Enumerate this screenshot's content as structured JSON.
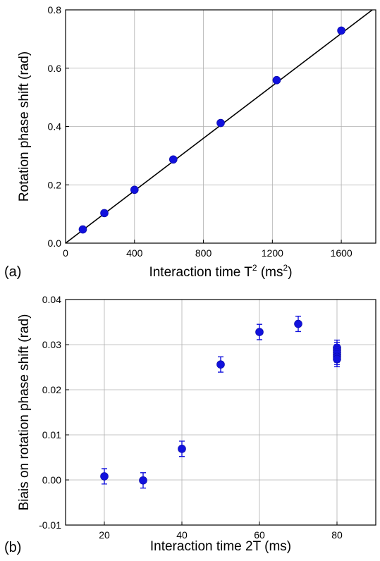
{
  "chart_data": [
    {
      "id": "a",
      "panel_label": "(a)",
      "type": "scatter",
      "title": "",
      "xlabel": "Interaction time T",
      "xlabel_sup": "2",
      "xlabel_tail": " (ms",
      "xlabel_tail_sup": "2",
      "xlabel_close": ")",
      "ylabel": "Rotation phase shift (rad)",
      "xlim": [
        0,
        1800
      ],
      "ylim": [
        0,
        0.8
      ],
      "xticks": [
        0,
        400,
        800,
        1200,
        1600
      ],
      "yticks": [
        0.0,
        0.2,
        0.4,
        0.6,
        0.8
      ],
      "xtick_labels": [
        "0",
        "400",
        "800",
        "1200",
        "1600"
      ],
      "ytick_labels": [
        "0.0",
        "0.2",
        "0.4",
        "0.6",
        "0.8"
      ],
      "grid": true,
      "marker_color": "#1111dd",
      "line_color": "#000000",
      "series": [
        {
          "x": [
            100,
            225,
            400,
            625,
            900,
            1225,
            1600
          ],
          "y": [
            0.047,
            0.103,
            0.183,
            0.287,
            0.412,
            0.559,
            0.729
          ]
        }
      ],
      "fit_line": {
        "x": [
          0,
          1780
        ],
        "y": [
          0,
          0.81
        ]
      }
    },
    {
      "id": "b",
      "panel_label": "(b)",
      "type": "scatter",
      "title": "",
      "xlabel": "Interaction time 2T (ms)",
      "ylabel": "Biais on rotation phase shift (rad)",
      "xlim": [
        10,
        90
      ],
      "ylim": [
        -0.01,
        0.04
      ],
      "xticks": [
        20,
        40,
        60,
        80
      ],
      "yticks": [
        -0.01,
        0.0,
        0.01,
        0.02,
        0.03,
        0.04
      ],
      "xtick_labels": [
        "20",
        "40",
        "60",
        "80"
      ],
      "ytick_labels": [
        "-0.01",
        "0.00",
        "0.01",
        "0.02",
        "0.03",
        "0.04"
      ],
      "grid": true,
      "marker_color": "#1111dd",
      "series": [
        {
          "x": [
            20,
            30,
            40,
            50,
            60,
            70,
            80,
            80,
            80,
            80,
            80,
            80
          ],
          "y": [
            0.0008,
            -0.0001,
            0.0069,
            0.0256,
            0.0328,
            0.0346,
            0.0293,
            0.0288,
            0.0283,
            0.0278,
            0.0273,
            0.0268
          ],
          "yerr": [
            0.0017,
            0.0017,
            0.0017,
            0.0017,
            0.0017,
            0.0017,
            0.0017,
            0.0017,
            0.0017,
            0.0017,
            0.0017,
            0.0017
          ]
        }
      ]
    }
  ]
}
